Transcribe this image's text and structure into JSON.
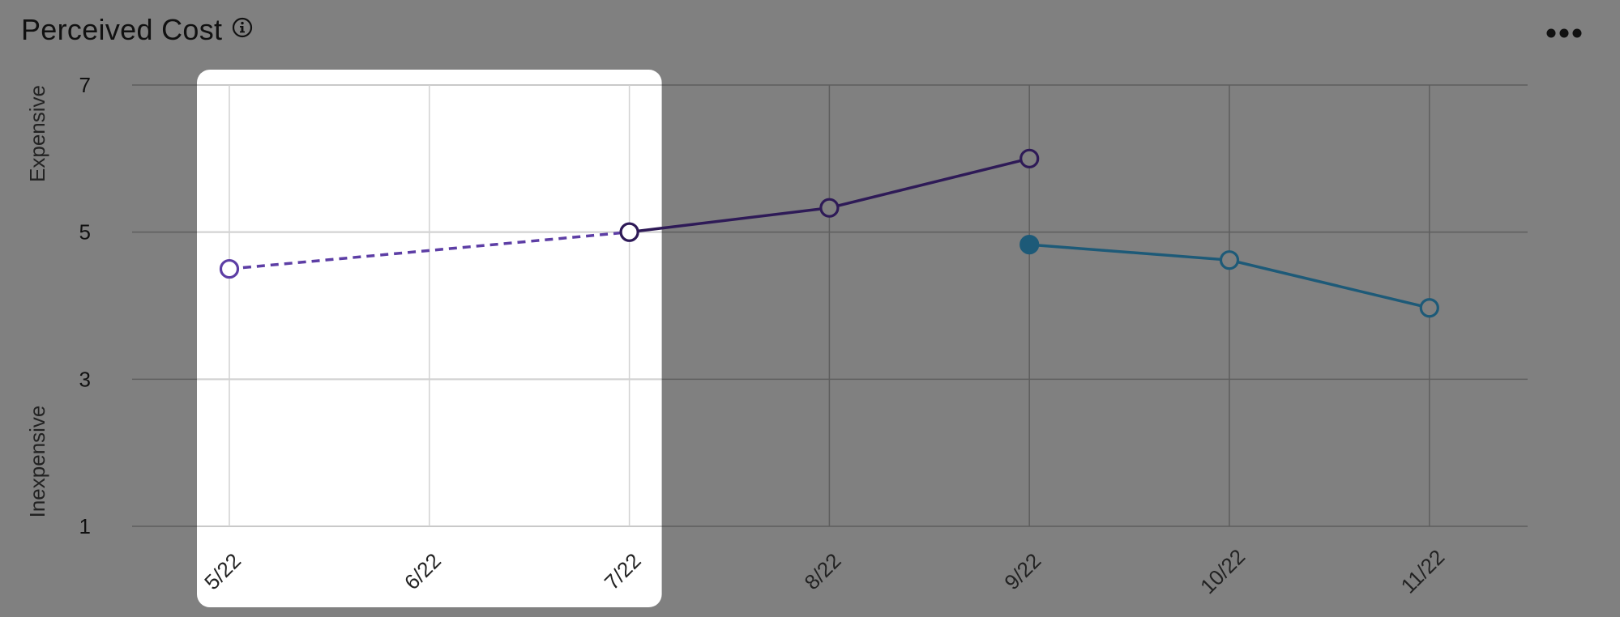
{
  "header": {
    "title": "Perceived Cost",
    "info_icon": "info-circle-icon",
    "more_icon": "more-horizontal-icon"
  },
  "colors": {
    "overlay": "#808080",
    "highlight": "#ffffff",
    "series_purple": "#2e1a57",
    "series_purple_dashed": "#5d3ea5",
    "series_blue": "#1d5a78"
  },
  "chart_data": {
    "type": "line",
    "x": [
      "5/22",
      "6/22",
      "7/22",
      "8/22",
      "9/22",
      "10/22",
      "11/22"
    ],
    "ylim": [
      1,
      7
    ],
    "yticks": [
      1,
      3,
      5,
      7
    ],
    "ylabel_top": "Expensive",
    "ylabel_bottom": "Inexpensive",
    "grid": true,
    "highlighted_range": [
      "5/22",
      "7/22"
    ],
    "series": [
      {
        "style": "dashed",
        "color": "#5d3ea5",
        "points": [
          {
            "x": "5/22",
            "y": 4.5,
            "marker": "hollow"
          },
          {
            "x": "7/22",
            "y": 5.0,
            "marker": "hollow"
          }
        ]
      },
      {
        "style": "solid",
        "color": "#2e1a57",
        "points": [
          {
            "x": "7/22",
            "y": 5.0,
            "marker": "hollow"
          },
          {
            "x": "8/22",
            "y": 5.33,
            "marker": "hollow"
          },
          {
            "x": "9/22",
            "y": 6.0,
            "marker": "hollow"
          }
        ]
      },
      {
        "style": "solid",
        "color": "#1d5a78",
        "points": [
          {
            "x": "9/22",
            "y": 4.83,
            "marker": "filled"
          },
          {
            "x": "10/22",
            "y": 4.62,
            "marker": "hollow"
          },
          {
            "x": "11/22",
            "y": 3.97,
            "marker": "hollow"
          }
        ]
      }
    ]
  }
}
